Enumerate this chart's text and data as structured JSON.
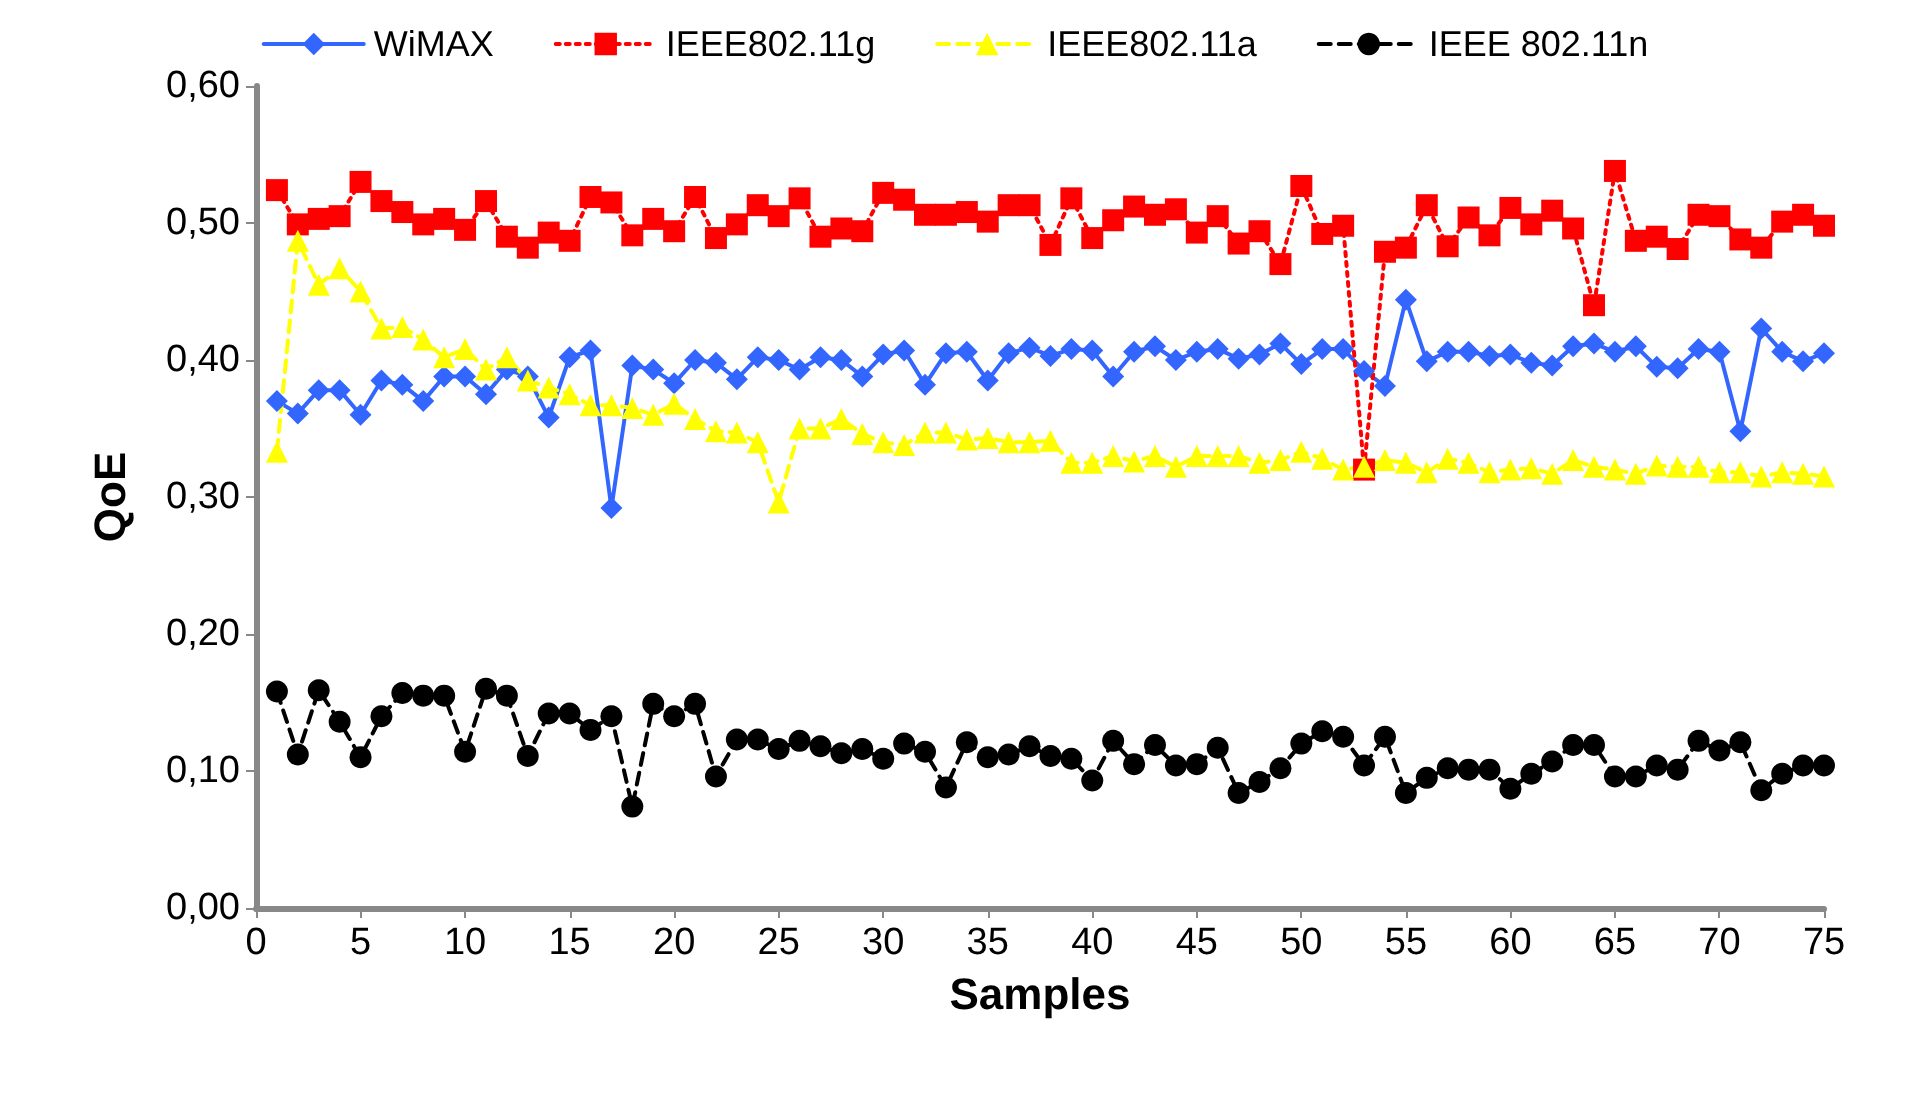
{
  "chart_data": {
    "type": "line",
    "xlabel": "Samples",
    "ylabel": "QoE",
    "legend": "top",
    "grid": false,
    "x": [
      1,
      2,
      3,
      4,
      5,
      6,
      7,
      8,
      9,
      10,
      11,
      12,
      13,
      14,
      15,
      16,
      17,
      18,
      19,
      20,
      21,
      22,
      23,
      24,
      25,
      26,
      27,
      28,
      29,
      30,
      31,
      32,
      33,
      34,
      35,
      36,
      37,
      38,
      39,
      40,
      41,
      42,
      43,
      44,
      45,
      46,
      47,
      48,
      49,
      50,
      51,
      52,
      53,
      54,
      55,
      56,
      57,
      58,
      59,
      60,
      61,
      62,
      63,
      64,
      65,
      66,
      67,
      68,
      69,
      70,
      71,
      72,
      73,
      74,
      75
    ],
    "xlim": [
      0,
      75
    ],
    "xticks": [
      0,
      5,
      10,
      15,
      20,
      25,
      30,
      35,
      40,
      45,
      50,
      55,
      60,
      65,
      70,
      75
    ],
    "ylim": [
      0,
      0.6
    ],
    "yticks": [
      {
        "value": 0,
        "label": "0,00"
      },
      {
        "value": 0.1,
        "label": "0,10"
      },
      {
        "value": 0.2,
        "label": "0,20"
      },
      {
        "value": 0.3,
        "label": "0,30"
      },
      {
        "value": 0.4,
        "label": "0,40"
      },
      {
        "value": 0.5,
        "label": "0,50"
      },
      {
        "value": 0.6,
        "label": "0,60"
      }
    ],
    "series": [
      {
        "name": "WiMAX",
        "color": "#3366ff",
        "marker": "diamond",
        "line_style": "solid",
        "values": [
          0.37,
          0.361,
          0.378,
          0.378,
          0.36,
          0.385,
          0.382,
          0.37,
          0.388,
          0.388,
          0.375,
          0.393,
          0.388,
          0.358,
          0.402,
          0.407,
          0.292,
          0.396,
          0.393,
          0.383,
          0.4,
          0.398,
          0.386,
          0.402,
          0.4,
          0.393,
          0.402,
          0.4,
          0.388,
          0.404,
          0.407,
          0.382,
          0.405,
          0.406,
          0.385,
          0.405,
          0.409,
          0.403,
          0.408,
          0.407,
          0.388,
          0.406,
          0.41,
          0.4,
          0.406,
          0.408,
          0.401,
          0.404,
          0.412,
          0.397,
          0.408,
          0.408,
          0.392,
          0.381,
          0.444,
          0.399,
          0.406,
          0.406,
          0.403,
          0.404,
          0.398,
          0.396,
          0.41,
          0.412,
          0.406,
          0.41,
          0.395,
          0.394,
          0.408,
          0.406,
          0.348,
          0.423,
          0.406,
          0.399,
          0.405
        ]
      },
      {
        "name": "IEEE802.11g",
        "color": "#ff0000",
        "marker": "square",
        "line_style": "dotted",
        "values": [
          0.524,
          0.499,
          0.503,
          0.505,
          0.53,
          0.516,
          0.508,
          0.499,
          0.503,
          0.495,
          0.516,
          0.49,
          0.482,
          0.493,
          0.487,
          0.519,
          0.515,
          0.491,
          0.503,
          0.494,
          0.519,
          0.489,
          0.499,
          0.513,
          0.505,
          0.518,
          0.49,
          0.496,
          0.494,
          0.522,
          0.517,
          0.506,
          0.506,
          0.508,
          0.501,
          0.513,
          0.513,
          0.484,
          0.518,
          0.489,
          0.502,
          0.512,
          0.506,
          0.51,
          0.493,
          0.505,
          0.485,
          0.494,
          0.47,
          0.527,
          0.492,
          0.498,
          0.32,
          0.479,
          0.482,
          0.513,
          0.483,
          0.504,
          0.491,
          0.511,
          0.499,
          0.509,
          0.496,
          0.44,
          0.538,
          0.487,
          0.49,
          0.481,
          0.506,
          0.505,
          0.488,
          0.482,
          0.501,
          0.506,
          0.498
        ]
      },
      {
        "name": "IEEE802.11a",
        "color": "#ffff00",
        "marker": "triangle",
        "line_style": "dashed",
        "values": [
          0.333,
          0.487,
          0.455,
          0.467,
          0.45,
          0.423,
          0.424,
          0.415,
          0.402,
          0.408,
          0.393,
          0.402,
          0.385,
          0.38,
          0.375,
          0.367,
          0.367,
          0.365,
          0.36,
          0.368,
          0.357,
          0.348,
          0.347,
          0.34,
          0.296,
          0.35,
          0.35,
          0.357,
          0.346,
          0.34,
          0.338,
          0.347,
          0.347,
          0.342,
          0.343,
          0.34,
          0.34,
          0.341,
          0.325,
          0.325,
          0.33,
          0.326,
          0.33,
          0.322,
          0.33,
          0.33,
          0.33,
          0.325,
          0.327,
          0.333,
          0.328,
          0.32,
          0.322,
          0.327,
          0.325,
          0.318,
          0.328,
          0.325,
          0.318,
          0.32,
          0.321,
          0.317,
          0.327,
          0.322,
          0.32,
          0.317,
          0.323,
          0.322,
          0.322,
          0.318,
          0.318,
          0.315,
          0.318,
          0.317,
          0.315
        ]
      },
      {
        "name": "IEEE 802.11n",
        "color": "#000000",
        "marker": "circle",
        "line_style": "dashed",
        "values": [
          0.158,
          0.112,
          0.159,
          0.136,
          0.11,
          0.14,
          0.157,
          0.155,
          0.155,
          0.114,
          0.16,
          0.155,
          0.111,
          0.142,
          0.142,
          0.13,
          0.14,
          0.074,
          0.149,
          0.14,
          0.149,
          0.096,
          0.123,
          0.123,
          0.116,
          0.122,
          0.118,
          0.113,
          0.116,
          0.109,
          0.12,
          0.114,
          0.088,
          0.121,
          0.11,
          0.112,
          0.118,
          0.111,
          0.109,
          0.093,
          0.122,
          0.105,
          0.119,
          0.104,
          0.105,
          0.117,
          0.084,
          0.092,
          0.102,
          0.12,
          0.129,
          0.125,
          0.104,
          0.125,
          0.084,
          0.095,
          0.102,
          0.101,
          0.101,
          0.087,
          0.098,
          0.107,
          0.119,
          0.119,
          0.096,
          0.096,
          0.104,
          0.101,
          0.122,
          0.115,
          0.121,
          0.086,
          0.098,
          0.104,
          0.104
        ]
      }
    ]
  }
}
